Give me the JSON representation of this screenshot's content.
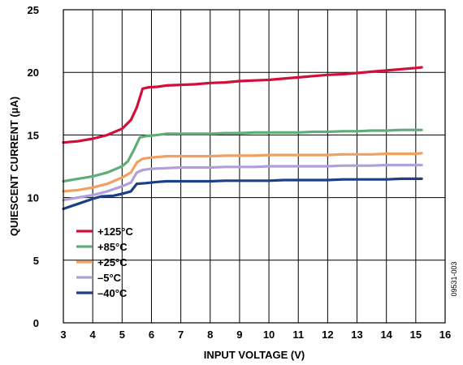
{
  "chart_data": {
    "type": "line",
    "xlabel": "INPUT VOLTAGE (V)",
    "ylabel": "QUIESCENT CURRENT (µA)",
    "xlim": [
      3,
      16
    ],
    "ylim": [
      0,
      25
    ],
    "x_ticks": [
      "3",
      "4",
      "5",
      "6",
      "7",
      "8",
      "9",
      "10",
      "11",
      "12",
      "13",
      "14",
      "15",
      "16"
    ],
    "y_ticks": [
      "0",
      "5",
      "10",
      "15",
      "20",
      "25"
    ],
    "grid": true,
    "legend_position": "lower-left",
    "figure_id": "09531-003",
    "series": [
      {
        "name": "+125°C",
        "color": "#d0103a",
        "points": [
          [
            3,
            14.4
          ],
          [
            3.5,
            14.5
          ],
          [
            4,
            14.7
          ],
          [
            4.5,
            15.0
          ],
          [
            5,
            15.5
          ],
          [
            5.3,
            16.2
          ],
          [
            5.5,
            17.2
          ],
          [
            5.7,
            18.7
          ],
          [
            5.9,
            18.8
          ],
          [
            6.2,
            18.85
          ],
          [
            6.5,
            18.95
          ],
          [
            7,
            19.0
          ],
          [
            7.5,
            19.05
          ],
          [
            8,
            19.15
          ],
          [
            8.5,
            19.2
          ],
          [
            9,
            19.3
          ],
          [
            9.5,
            19.35
          ],
          [
            10,
            19.4
          ],
          [
            10.5,
            19.5
          ],
          [
            11,
            19.6
          ],
          [
            11.5,
            19.7
          ],
          [
            12,
            19.8
          ],
          [
            12.5,
            19.85
          ],
          [
            13,
            19.95
          ],
          [
            13.5,
            20.05
          ],
          [
            14,
            20.15
          ],
          [
            14.5,
            20.25
          ],
          [
            15,
            20.35
          ],
          [
            15.2,
            20.4
          ]
        ]
      },
      {
        "name": "+85°C",
        "color": "#5fae7a",
        "points": [
          [
            3,
            11.3
          ],
          [
            3.5,
            11.5
          ],
          [
            4,
            11.7
          ],
          [
            4.5,
            12.0
          ],
          [
            5,
            12.5
          ],
          [
            5.2,
            12.9
          ],
          [
            5.4,
            13.8
          ],
          [
            5.6,
            14.8
          ],
          [
            5.8,
            14.9
          ],
          [
            6.2,
            15.0
          ],
          [
            6.5,
            15.1
          ],
          [
            7,
            15.1
          ],
          [
            7.5,
            15.1
          ],
          [
            8,
            15.1
          ],
          [
            8.5,
            15.15
          ],
          [
            9,
            15.15
          ],
          [
            9.5,
            15.2
          ],
          [
            10,
            15.2
          ],
          [
            10.5,
            15.2
          ],
          [
            11,
            15.2
          ],
          [
            11.5,
            15.25
          ],
          [
            12,
            15.25
          ],
          [
            12.5,
            15.3
          ],
          [
            13,
            15.3
          ],
          [
            13.5,
            15.35
          ],
          [
            14,
            15.35
          ],
          [
            14.5,
            15.4
          ],
          [
            15,
            15.4
          ],
          [
            15.2,
            15.4
          ]
        ]
      },
      {
        "name": "+25°C",
        "color": "#f0a060",
        "points": [
          [
            3,
            10.5
          ],
          [
            3.5,
            10.6
          ],
          [
            4,
            10.8
          ],
          [
            4.5,
            11.1
          ],
          [
            5,
            11.6
          ],
          [
            5.3,
            12.0
          ],
          [
            5.5,
            12.8
          ],
          [
            5.7,
            13.1
          ],
          [
            6,
            13.2
          ],
          [
            6.5,
            13.3
          ],
          [
            7,
            13.3
          ],
          [
            7.5,
            13.3
          ],
          [
            8,
            13.3
          ],
          [
            8.5,
            13.35
          ],
          [
            9,
            13.35
          ],
          [
            9.5,
            13.35
          ],
          [
            10,
            13.4
          ],
          [
            10.5,
            13.4
          ],
          [
            11,
            13.4
          ],
          [
            11.5,
            13.4
          ],
          [
            12,
            13.4
          ],
          [
            12.5,
            13.45
          ],
          [
            13,
            13.45
          ],
          [
            13.5,
            13.45
          ],
          [
            14,
            13.5
          ],
          [
            14.5,
            13.5
          ],
          [
            15,
            13.5
          ],
          [
            15.2,
            13.55
          ]
        ]
      },
      {
        "name": "–5°C",
        "color": "#b0a0d8",
        "points": [
          [
            3,
            9.8
          ],
          [
            3.5,
            10.0
          ],
          [
            4,
            10.2
          ],
          [
            4.5,
            10.5
          ],
          [
            5,
            10.9
          ],
          [
            5.3,
            11.2
          ],
          [
            5.5,
            12.0
          ],
          [
            5.7,
            12.2
          ],
          [
            6,
            12.3
          ],
          [
            6.5,
            12.35
          ],
          [
            7,
            12.4
          ],
          [
            7.5,
            12.4
          ],
          [
            8,
            12.4
          ],
          [
            8.5,
            12.45
          ],
          [
            9,
            12.45
          ],
          [
            9.5,
            12.45
          ],
          [
            10,
            12.5
          ],
          [
            10.5,
            12.5
          ],
          [
            11,
            12.5
          ],
          [
            11.5,
            12.5
          ],
          [
            12,
            12.5
          ],
          [
            12.5,
            12.55
          ],
          [
            13,
            12.55
          ],
          [
            13.5,
            12.55
          ],
          [
            14,
            12.6
          ],
          [
            14.5,
            12.6
          ],
          [
            15,
            12.6
          ],
          [
            15.2,
            12.6
          ]
        ]
      },
      {
        "name": "–40°C",
        "color": "#1c3f8a",
        "points": [
          [
            3,
            9.1
          ],
          [
            3.5,
            9.5
          ],
          [
            4,
            9.9
          ],
          [
            4.3,
            10.1
          ],
          [
            4.7,
            10.15
          ],
          [
            5,
            10.3
          ],
          [
            5.3,
            10.5
          ],
          [
            5.5,
            11.1
          ],
          [
            5.8,
            11.15
          ],
          [
            6.2,
            11.25
          ],
          [
            6.5,
            11.3
          ],
          [
            7,
            11.3
          ],
          [
            7.5,
            11.3
          ],
          [
            8,
            11.3
          ],
          [
            8.5,
            11.35
          ],
          [
            9,
            11.35
          ],
          [
            9.5,
            11.35
          ],
          [
            10,
            11.35
          ],
          [
            10.5,
            11.4
          ],
          [
            11,
            11.4
          ],
          [
            11.5,
            11.4
          ],
          [
            12,
            11.4
          ],
          [
            12.5,
            11.45
          ],
          [
            13,
            11.45
          ],
          [
            13.5,
            11.45
          ],
          [
            14,
            11.45
          ],
          [
            14.5,
            11.5
          ],
          [
            15,
            11.5
          ],
          [
            15.2,
            11.5
          ]
        ]
      }
    ]
  }
}
